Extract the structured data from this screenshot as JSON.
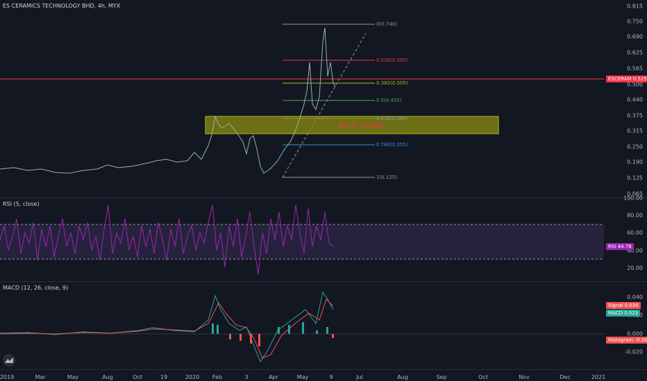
{
  "header": {
    "symbol_title": "ES CERAMICS TECHNOLOGY BHD, 4h, MYX"
  },
  "price_axis": [
    "0.815",
    "0.750",
    "0.690",
    "0.625",
    "0.565",
    "0.500",
    "0.440",
    "0.375",
    "0.315",
    "0.250",
    "0.190",
    "0.125",
    "0.065"
  ],
  "price_badge": {
    "label": "ESCERAM",
    "value": "0.525"
  },
  "fib_levels": [
    {
      "label": "0(0.740)",
      "color": "#9598a1"
    },
    {
      "label": "0.236(0.595)",
      "color": "#f23645"
    },
    {
      "label": "0.382(0.505)",
      "color": "#b5b815"
    },
    {
      "label": "0.5(0.435)",
      "color": "#4caf50"
    },
    {
      "label": "0.618(0.360)",
      "color": "#9598a1"
    },
    {
      "label": "0.786(0.255)",
      "color": "#2196f3"
    },
    {
      "label": "1(0.125)",
      "color": "#9598a1"
    }
  ],
  "buy_zone": {
    "label": "BUY ZONE",
    "color": "#f23645"
  },
  "rsi": {
    "title": "RSI (5, close)",
    "axis": [
      "100.00",
      "80.00",
      "60.00",
      "40.00",
      "20.00"
    ],
    "badge": {
      "label": "RSI",
      "value": "44.78"
    }
  },
  "macd": {
    "title": "MACD (12, 26, close, 9)",
    "axis": [
      "0.040",
      "0.020",
      "0.000",
      "-0.020"
    ],
    "signal_badge": {
      "label": "Signal",
      "value": "0.030"
    },
    "macd_badge": {
      "label": "MACD",
      "value": "0.023"
    },
    "hist_badge": {
      "label": "Histogram",
      "value": "-0.007"
    }
  },
  "time_axis": [
    "2019",
    "Mar",
    "May",
    "Aug",
    "Oct",
    "19",
    "2020",
    "Feb",
    "3",
    "Apr",
    "May",
    "9",
    "Jul",
    "Aug",
    "Sep",
    "Oct",
    "Nov",
    "Dec",
    "2021"
  ],
  "colors": {
    "background": "#131722",
    "rsi": "#9c27b0",
    "macd": "#26a69a",
    "signal": "#ef5350",
    "candle_up": "#26a69a",
    "candle_down": "#ef5350"
  }
}
